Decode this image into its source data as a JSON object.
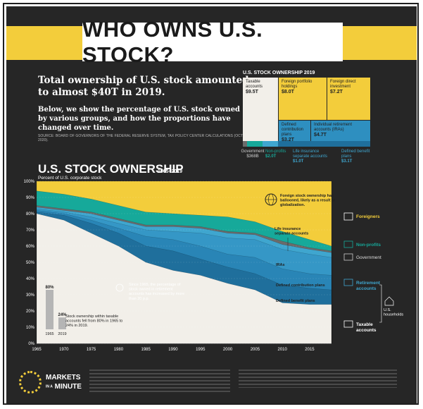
{
  "title": "WHO OWNS U.S. STOCK?",
  "intro": {
    "headline": "Total ownership of U.S. stock amounted to almost $40T in 2019.",
    "body": "Below, we show the percentage of U.S. stock owned by various groups, and how the proportions have changed over time.",
    "source": "SOURCE: BOARD OF GOVERNORS OF THE FEDERAL RESERVE SYSTEM, TAX POLICY CENTER CALCULATIONS (OCT 2020)."
  },
  "treemap": {
    "title": "U.S. STOCK OWNERSHIP 2019",
    "cells": [
      {
        "label": "Taxable accounts",
        "value": "$9.5T",
        "color": "#f2efe9"
      },
      {
        "label": "Foreign portfolio holdings",
        "value": "$8.0T",
        "color": "#f3cd3b"
      },
      {
        "label": "Foreign direct investment",
        "value": "$7.2T",
        "color": "#f3cd3b"
      },
      {
        "label": "Defined contribution plans",
        "value": "$3.2T",
        "color": "#2e8fc0"
      },
      {
        "label": "Individual retirement accounts (IRAs)",
        "value": "$4.7T",
        "color": "#2e8fc0"
      }
    ],
    "below": [
      {
        "label": "Government",
        "value": "$368B"
      },
      {
        "label": "Non-profits",
        "value": "$2.0T"
      },
      {
        "label": "Life insurance separate accounts",
        "value": "$1.0T"
      },
      {
        "label": "Defined benefit plans",
        "value": "$3.1T"
      }
    ]
  },
  "chart_title": "U.S. STOCK OWNERSHIP",
  "chart_years": "1965–2019",
  "chart_ylabel": "Percent of U.S. corporate stock",
  "colors": {
    "taxable": "#f2efe9",
    "defined_benefit": "#1f6f9c",
    "defined_contribution": "#2985b6",
    "iras": "#3597c6",
    "life_insurance": "#3fa6cf",
    "government": "#6b6b6b",
    "nonprofits": "#16a99a",
    "foreigners": "#f3cd3b",
    "panel": "#262626"
  },
  "chart_data": {
    "type": "area",
    "x": [
      1965,
      1970,
      1975,
      1980,
      1985,
      1990,
      1995,
      2000,
      2005,
      2010,
      2015,
      2019
    ],
    "ylim": [
      0,
      100
    ],
    "yticks": [
      0,
      10,
      20,
      30,
      40,
      50,
      60,
      70,
      80,
      90,
      100
    ],
    "xticks": [
      1965,
      1970,
      1975,
      1980,
      1985,
      1990,
      1995,
      2000,
      2005,
      2010,
      2015
    ],
    "series": [
      {
        "key": "taxable",
        "values": [
          80,
          76,
          68,
          60,
          50,
          45,
          42,
          37,
          33,
          25,
          24,
          24
        ]
      },
      {
        "key": "defined_benefit",
        "values": [
          81,
          79,
          74,
          68,
          60,
          57,
          52,
          47,
          43,
          36,
          34,
          33
        ]
      },
      {
        "key": "defined_contribution",
        "values": [
          82,
          80,
          76,
          71,
          66,
          64,
          60,
          55,
          53,
          46,
          43,
          42
        ]
      },
      {
        "key": "iras",
        "values": [
          83,
          81,
          78,
          74,
          70,
          69,
          68,
          65,
          64,
          58,
          55,
          53
        ]
      },
      {
        "key": "life_insurance",
        "values": [
          84,
          82,
          80,
          76,
          72,
          72,
          71,
          68,
          67,
          61,
          58,
          56
        ]
      },
      {
        "key": "government",
        "values": [
          85,
          83,
          81,
          77,
          73,
          73,
          72,
          69,
          68,
          63,
          59,
          57
        ]
      },
      {
        "key": "nonprofits",
        "values": [
          94,
          92,
          89,
          85,
          81,
          80,
          79,
          78,
          75,
          69,
          64,
          60
        ]
      },
      {
        "key": "foreigners",
        "values": [
          100,
          100,
          100,
          100,
          100,
          100,
          100,
          100,
          100,
          100,
          100,
          100
        ]
      }
    ],
    "annotations": {
      "foreign": "Foreign stock ownership has ballooned, likely as a result of globalization.",
      "life_insurance": "Life insurance separate accounts",
      "iras": "IRAs",
      "dc": "Defined contribution plans",
      "db": "Defined benefit plans",
      "retirement": "Since 1965, the percentage of stock owned in retirement accounts has increased by more than 20 p.p.",
      "taxable_note": "Stock ownership within taxable accounts fell from 80% in 1965 to 24% in 2019."
    },
    "mini_bars": [
      {
        "year": "1965",
        "value": 80,
        "label": "80%"
      },
      {
        "year": "2019",
        "value": 24,
        "label": "24%"
      }
    ],
    "legend": {
      "foreigners": "Foreigners",
      "nonprofits": "Non-profits",
      "government": "Government",
      "retirement": "Retirement accounts",
      "us_households": "U.S. households",
      "taxable": "Taxable accounts"
    }
  },
  "footer": {
    "logo_line1": "MARKETS",
    "logo_line2": "MINUTE",
    "logo_small": "IN A"
  }
}
